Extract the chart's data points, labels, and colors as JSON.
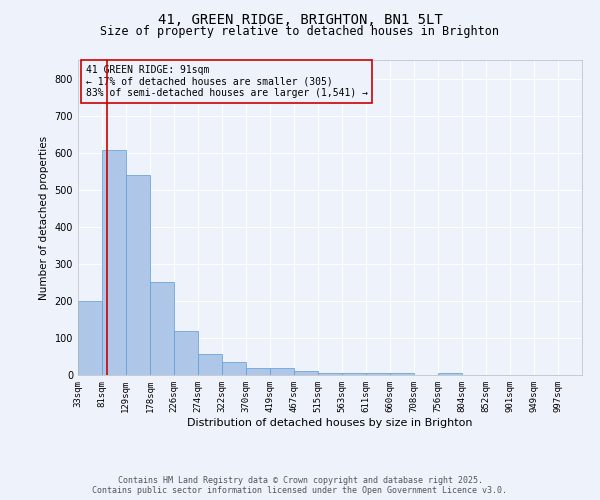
{
  "title": "41, GREEN RIDGE, BRIGHTON, BN1 5LT",
  "subtitle": "Size of property relative to detached houses in Brighton",
  "xlabel": "Distribution of detached houses by size in Brighton",
  "ylabel": "Number of detached properties",
  "footer_line1": "Contains HM Land Registry data © Crown copyright and database right 2025.",
  "footer_line2": "Contains public sector information licensed under the Open Government Licence v3.0.",
  "annotation_title": "41 GREEN RIDGE: 91sqm",
  "annotation_line1": "← 17% of detached houses are smaller (305)",
  "annotation_line2": "83% of semi-detached houses are larger (1,541) →",
  "bin_labels": [
    "33sqm",
    "81sqm",
    "129sqm",
    "178sqm",
    "226sqm",
    "274sqm",
    "322sqm",
    "370sqm",
    "419sqm",
    "467sqm",
    "515sqm",
    "563sqm",
    "611sqm",
    "660sqm",
    "708sqm",
    "756sqm",
    "804sqm",
    "852sqm",
    "901sqm",
    "949sqm",
    "997sqm"
  ],
  "bin_edges": [
    33,
    81,
    129,
    178,
    226,
    274,
    322,
    370,
    419,
    467,
    515,
    563,
    611,
    660,
    708,
    756,
    804,
    852,
    901,
    949,
    997
  ],
  "bar_heights": [
    200,
    607,
    540,
    250,
    118,
    58,
    35,
    18,
    18,
    12,
    5,
    5,
    5,
    5,
    0,
    5,
    0,
    0,
    0,
    0
  ],
  "bar_color": "#aec6e8",
  "bar_edge_color": "#5b9bd5",
  "red_line_x": 91,
  "red_line_color": "#cc0000",
  "annotation_box_color": "#cc0000",
  "ylim": [
    0,
    850
  ],
  "background_color": "#eef2fa",
  "grid_color": "#ffffff",
  "title_fontsize": 10,
  "subtitle_fontsize": 8.5,
  "xlabel_fontsize": 8,
  "ylabel_fontsize": 7.5,
  "tick_fontsize": 6.5,
  "annotation_fontsize": 7,
  "footer_fontsize": 6
}
